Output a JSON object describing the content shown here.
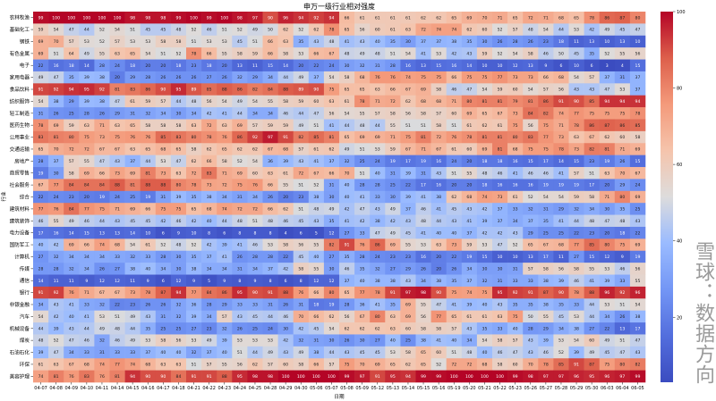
{
  "chart_data": {
    "type": "heatmap",
    "title": "申万一级行业相对强度",
    "xlabel": "日期",
    "ylabel": "行业",
    "colormap": "coolwarm",
    "vmin": 3,
    "vmax": 100,
    "colorbar_ticks": [
      20,
      40,
      60,
      80,
      100
    ],
    "x": [
      "04-07",
      "04-08",
      "04-09",
      "04-10",
      "04-11",
      "04-14",
      "04-15",
      "04-16",
      "04-17",
      "04-18",
      "04-21",
      "04-22",
      "04-23",
      "04-24",
      "04-25",
      "04-28",
      "04-29",
      "04-30",
      "05-06",
      "05-07",
      "05-08",
      "05-09",
      "05-12",
      "05-13",
      "05-14",
      "05-15",
      "05-16",
      "05-19",
      "05-20",
      "05-21",
      "05-22",
      "05-23",
      "05-26",
      "05-27",
      "05-28",
      "05-29",
      "05-30",
      "06-03",
      "06-04",
      "06-05"
    ],
    "y": [
      "农林牧渔",
      "基础化工",
      "钢铁",
      "有色金属",
      "电子",
      "家用电器",
      "食品饮料",
      "纺织服饰",
      "轻工制造",
      "医药生物",
      "公用事业",
      "交通运输",
      "房地产",
      "商贸零售",
      "社会服务",
      "综合",
      "建筑材料",
      "建筑装饰",
      "电力设备",
      "国防军工",
      "计算机",
      "传媒",
      "通信",
      "银行",
      "非银金融",
      "汽车",
      "机械设备",
      "煤炭",
      "石油石化",
      "环保",
      "美容护理"
    ],
    "values": [
      [
        99,
        100,
        100,
        100,
        100,
        100,
        98,
        98,
        98,
        99,
        100,
        99,
        100,
        98,
        97,
        90,
        96,
        94,
        92,
        94,
        66,
        61,
        61,
        61,
        61,
        62,
        62,
        65,
        69,
        70,
        71,
        65,
        72,
        71,
        68,
        65,
        78,
        86,
        87,
        80
      ],
      [
        59,
        54,
        47,
        44,
        52,
        54,
        51,
        45,
        45,
        48,
        52,
        46,
        51,
        52,
        49,
        50,
        62,
        52,
        62,
        78,
        65,
        56,
        60,
        61,
        63,
        72,
        74,
        74,
        62,
        60,
        52,
        57,
        48,
        54,
        44,
        53,
        42,
        49,
        45,
        47
      ],
      [
        69,
        70,
        57,
        53,
        52,
        57,
        53,
        53,
        58,
        58,
        51,
        53,
        53,
        45,
        51,
        66,
        63,
        35,
        43,
        48,
        41,
        43,
        40,
        35,
        30,
        37,
        37,
        38,
        35,
        30,
        26,
        28,
        26,
        23,
        18,
        11,
        13,
        10,
        13,
        10
      ],
      [
        69,
        51,
        64,
        49,
        55,
        63,
        65,
        54,
        51,
        52,
        78,
        66,
        55,
        58,
        59,
        66,
        58,
        53,
        66,
        67,
        48,
        49,
        48,
        51,
        54,
        41,
        53,
        42,
        43,
        59,
        52,
        54,
        58,
        46,
        50,
        45,
        35,
        52,
        55,
        56
      ],
      [
        22,
        16,
        18,
        14,
        28,
        24,
        18,
        20,
        20,
        18,
        23,
        18,
        20,
        13,
        11,
        15,
        14,
        20,
        22,
        24,
        30,
        32,
        31,
        28,
        16,
        13,
        15,
        16,
        14,
        10,
        10,
        12,
        13,
        9,
        6,
        10,
        6,
        3,
        4,
        15
      ],
      [
        49,
        47,
        35,
        39,
        38,
        20,
        29,
        28,
        26,
        26,
        26,
        27,
        26,
        32,
        29,
        34,
        44,
        49,
        37,
        54,
        58,
        68,
        76,
        76,
        74,
        75,
        75,
        66,
        75,
        75,
        77,
        73,
        73,
        66,
        68,
        54,
        57,
        37,
        31,
        37
      ],
      [
        91,
        92,
        94,
        95,
        92,
        81,
        83,
        86,
        90,
        95,
        89,
        85,
        88,
        86,
        82,
        84,
        88,
        89,
        90,
        75,
        65,
        65,
        63,
        66,
        67,
        69,
        58,
        46,
        47,
        54,
        59,
        60,
        54,
        57,
        56,
        43,
        43,
        47,
        53,
        37
      ],
      [
        54,
        38,
        29,
        39,
        38,
        47,
        61,
        59,
        57,
        44,
        48,
        56,
        54,
        49,
        54,
        55,
        58,
        59,
        60,
        63,
        61,
        78,
        71,
        72,
        62,
        68,
        68,
        71,
        80,
        81,
        81,
        79,
        81,
        86,
        91,
        90,
        85,
        94,
        94,
        94
      ],
      [
        31,
        26,
        25,
        28,
        26,
        29,
        31,
        32,
        34,
        30,
        34,
        42,
        41,
        44,
        34,
        34,
        46,
        44,
        47,
        56,
        54,
        55,
        57,
        58,
        56,
        58,
        57,
        60,
        69,
        65,
        67,
        73,
        84,
        82,
        74,
        77,
        75,
        75,
        75,
        78
      ],
      [
        78,
        69,
        59,
        63,
        71,
        63,
        65,
        58,
        58,
        58,
        63,
        72,
        63,
        69,
        57,
        59,
        59,
        49,
        51,
        41,
        44,
        48,
        44,
        55,
        51,
        51,
        58,
        51,
        61,
        62,
        61,
        75,
        56,
        75,
        71,
        78,
        86,
        87,
        86,
        85
      ],
      [
        83,
        81,
        80,
        75,
        73,
        75,
        76,
        76,
        85,
        83,
        80,
        78,
        76,
        86,
        92,
        97,
        91,
        82,
        85,
        81,
        65,
        69,
        69,
        71,
        75,
        81,
        72,
        76,
        78,
        81,
        81,
        80,
        83,
        77,
        73,
        63,
        67,
        62,
        60,
        58
      ],
      [
        65,
        70,
        72,
        72,
        67,
        67,
        63,
        65,
        68,
        65,
        58,
        62,
        65,
        62,
        62,
        67,
        68,
        57,
        61,
        62,
        49,
        51,
        53,
        59,
        67,
        71,
        67,
        61,
        60,
        69,
        81,
        68,
        75,
        75,
        78,
        73,
        82,
        81,
        71,
        69
      ],
      [
        28,
        37,
        57,
        55,
        47,
        43,
        37,
        44,
        53,
        47,
        62,
        66,
        58,
        52,
        54,
        36,
        39,
        43,
        41,
        37,
        32,
        25,
        24,
        19,
        17,
        19,
        16,
        24,
        20,
        18,
        18,
        16,
        15,
        17,
        14,
        15,
        23,
        19,
        26,
        15
      ],
      [
        19,
        30,
        58,
        69,
        66,
        73,
        69,
        81,
        73,
        63,
        72,
        83,
        71,
        69,
        60,
        63,
        61,
        72,
        67,
        66,
        70,
        51,
        40,
        31,
        39,
        31,
        43,
        51,
        55,
        48,
        46,
        41,
        46,
        46,
        41,
        57,
        51,
        63,
        70,
        67
      ],
      [
        67,
        77,
        84,
        84,
        84,
        88,
        81,
        88,
        88,
        80,
        78,
        73,
        72,
        75,
        76,
        66,
        55,
        51,
        52,
        31,
        40,
        28,
        28,
        25,
        22,
        17,
        16,
        20,
        20,
        18,
        16,
        16,
        16,
        19,
        19,
        19,
        17,
        20,
        29,
        24
      ],
      [
        22,
        24,
        23,
        20,
        19,
        24,
        25,
        19,
        31,
        39,
        35,
        38,
        34,
        31,
        34,
        26,
        20,
        23,
        38,
        30,
        40,
        41,
        33,
        30,
        39,
        41,
        38,
        62,
        68,
        74,
        73,
        61,
        52,
        54,
        54,
        59,
        58,
        71,
        80,
        69
      ],
      [
        77,
        76,
        84,
        77,
        75,
        71,
        69,
        66,
        75,
        75,
        65,
        68,
        74,
        72,
        72,
        66,
        62,
        51,
        48,
        49,
        42,
        47,
        43,
        49,
        37,
        46,
        41,
        45,
        43,
        42,
        37,
        33,
        32,
        31,
        29,
        32,
        34,
        30,
        35,
        25
      ],
      [
        46,
        55,
        49,
        46,
        44,
        43,
        45,
        45,
        42,
        46,
        42,
        40,
        44,
        48,
        51,
        48,
        46,
        45,
        43,
        35,
        41,
        42,
        38,
        42,
        43,
        48,
        44,
        43,
        41,
        39,
        37,
        34,
        37,
        35,
        41,
        44,
        48,
        47,
        48,
        43
      ],
      [
        17,
        16,
        14,
        15,
        13,
        13,
        14,
        10,
        6,
        9,
        10,
        8,
        6,
        8,
        8,
        8,
        4,
        6,
        5,
        12,
        27,
        33,
        47,
        49,
        45,
        41,
        40,
        40,
        37,
        42,
        42,
        43,
        29,
        25,
        25,
        22,
        23,
        20,
        18,
        22
      ],
      [
        40,
        42,
        69,
        66,
        74,
        68,
        54,
        61,
        52,
        48,
        52,
        42,
        39,
        41,
        46,
        53,
        58,
        56,
        55,
        82,
        91,
        76,
        86,
        69,
        55,
        53,
        63,
        73,
        59,
        53,
        47,
        52,
        65,
        67,
        68,
        77,
        85,
        80,
        75,
        69
      ],
      [
        27,
        32,
        34,
        34,
        34,
        33,
        32,
        33,
        28,
        30,
        35,
        37,
        41,
        26,
        28,
        28,
        22,
        45,
        40,
        27,
        35,
        28,
        24,
        23,
        23,
        16,
        20,
        22,
        19,
        15,
        10,
        10,
        13,
        17,
        11,
        27,
        15,
        12,
        9,
        19
      ],
      [
        28,
        28,
        32,
        34,
        26,
        27,
        38,
        40,
        34,
        30,
        38,
        34,
        34,
        31,
        34,
        37,
        42,
        58,
        55,
        30,
        46,
        35,
        32,
        27,
        29,
        26,
        20,
        26,
        34,
        30,
        30,
        31,
        57,
        58,
        56,
        58,
        55,
        53,
        46,
        56
      ],
      [
        14,
        11,
        11,
        9,
        12,
        12,
        11,
        9,
        6,
        12,
        9,
        5,
        9,
        8,
        9,
        8,
        6,
        8,
        12,
        12,
        37,
        40,
        38,
        38,
        43,
        34,
        38,
        35,
        37,
        32,
        31,
        33,
        33,
        38,
        39,
        46,
        41,
        39,
        33,
        55
      ],
      [
        91,
        92,
        76,
        71,
        67,
        67,
        73,
        78,
        87,
        94,
        77,
        84,
        86,
        95,
        90,
        91,
        88,
        76,
        66,
        80,
        65,
        77,
        78,
        91,
        97,
        98,
        90,
        75,
        74,
        75,
        95,
        92,
        91,
        87,
        90,
        78,
        88,
        96,
        92,
        96
      ],
      [
        34,
        43,
        41,
        33,
        32,
        22,
        23,
        26,
        26,
        32,
        36,
        28,
        29,
        33,
        33,
        31,
        26,
        31,
        18,
        19,
        28,
        36,
        41,
        35,
        69,
        55,
        47,
        41,
        39,
        40,
        43,
        35,
        35,
        38,
        35,
        33,
        44,
        53,
        51,
        54
      ],
      [
        54,
        42,
        40,
        41,
        53,
        51,
        49,
        43,
        31,
        32,
        39,
        34,
        57,
        43,
        45,
        44,
        46,
        70,
        66,
        62,
        56,
        67,
        80,
        63,
        69,
        56,
        77,
        65,
        61,
        61,
        63,
        75,
        50,
        55,
        45,
        53,
        44,
        34,
        26,
        38
      ],
      [
        44,
        39,
        43,
        44,
        49,
        48,
        44,
        35,
        25,
        25,
        27,
        23,
        32,
        26,
        25,
        24,
        30,
        42,
        45,
        54,
        62,
        62,
        62,
        63,
        60,
        58,
        58,
        57,
        43,
        35,
        33,
        40,
        28,
        29,
        34,
        38,
        27,
        22,
        13,
        17
      ],
      [
        48,
        52,
        47,
        46,
        32,
        46,
        49,
        53,
        58,
        56,
        53,
        49,
        39,
        53,
        53,
        53,
        42,
        32,
        31,
        30,
        26,
        30,
        27,
        40,
        25,
        38,
        41,
        40,
        34,
        54,
        58,
        57,
        43,
        39,
        53,
        54,
        60,
        49,
        51,
        47
      ],
      [
        39,
        47,
        34,
        33,
        31,
        33,
        33,
        37,
        40,
        40,
        32,
        37,
        40,
        51,
        44,
        49,
        43,
        49,
        38,
        44,
        43,
        45,
        45,
        53,
        58,
        65,
        60,
        51,
        48,
        40,
        46,
        47,
        43,
        46,
        52,
        39,
        49,
        45,
        47,
        43
      ],
      [
        61,
        63,
        67,
        68,
        74,
        77,
        74,
        68,
        63,
        63,
        51,
        57,
        55,
        56,
        62,
        57,
        60,
        58,
        66,
        57,
        75,
        70,
        69,
        65,
        62,
        65,
        52,
        72,
        72,
        68,
        58,
        60,
        70,
        78,
        85,
        91,
        87,
        75,
        80,
        82
      ],
      [
        74,
        81,
        76,
        83,
        76,
        81,
        94,
        90,
        90,
        84,
        91,
        91,
        88,
        95,
        98,
        98,
        100,
        100,
        100,
        100,
        99,
        97,
        91,
        95,
        94,
        99,
        99,
        100,
        100,
        100,
        100,
        99,
        98,
        97,
        97,
        96,
        95,
        96,
        97,
        99
      ]
    ]
  },
  "watermark": "雪球：数据方向"
}
